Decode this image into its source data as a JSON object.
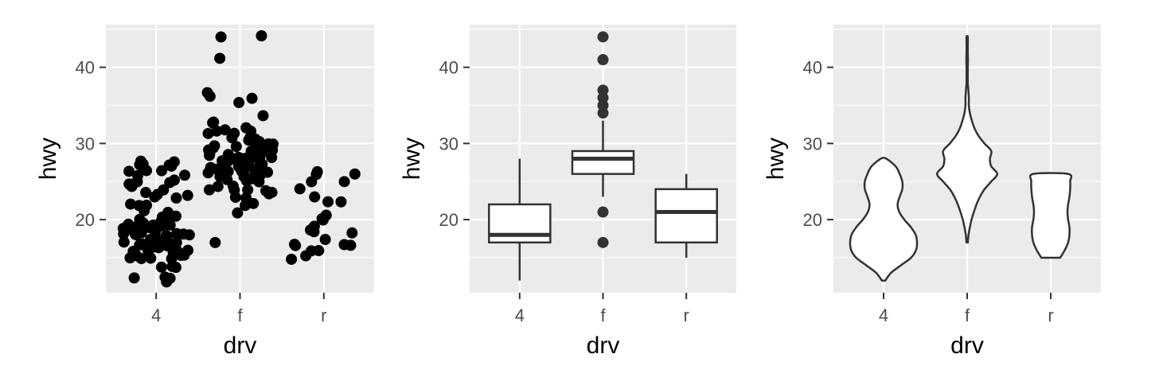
{
  "chart_data": [
    {
      "type": "scatter",
      "xlabel": "drv",
      "ylabel": "hwy",
      "categories": [
        "4",
        "f",
        "r"
      ],
      "yticks": [
        20,
        30,
        40
      ],
      "ylim": [
        10.4,
        45.6
      ],
      "grid": true,
      "point_color": "#000000",
      "points": [
        {
          "c": "4",
          "y": 12
        },
        {
          "c": "4",
          "y": 12
        },
        {
          "c": "4",
          "y": 12
        },
        {
          "c": "4",
          "y": 12
        },
        {
          "c": "4",
          "y": 12
        },
        {
          "c": "4",
          "y": 14
        },
        {
          "c": "4",
          "y": 14
        },
        {
          "c": "4",
          "y": 14
        },
        {
          "c": "4",
          "y": 15
        },
        {
          "c": "4",
          "y": 15
        },
        {
          "c": "4",
          "y": 15
        },
        {
          "c": "4",
          "y": 15
        },
        {
          "c": "4",
          "y": 15
        },
        {
          "c": "4",
          "y": 15
        },
        {
          "c": "4",
          "y": 15
        },
        {
          "c": "4",
          "y": 16
        },
        {
          "c": "4",
          "y": 16
        },
        {
          "c": "4",
          "y": 16
        },
        {
          "c": "4",
          "y": 16
        },
        {
          "c": "4",
          "y": 16
        },
        {
          "c": "4",
          "y": 16
        },
        {
          "c": "4",
          "y": 16
        },
        {
          "c": "4",
          "y": 16
        },
        {
          "c": "4",
          "y": 17
        },
        {
          "c": "4",
          "y": 17
        },
        {
          "c": "4",
          "y": 17
        },
        {
          "c": "4",
          "y": 17
        },
        {
          "c": "4",
          "y": 17
        },
        {
          "c": "4",
          "y": 17
        },
        {
          "c": "4",
          "y": 17
        },
        {
          "c": "4",
          "y": 17
        },
        {
          "c": "4",
          "y": 17
        },
        {
          "c": "4",
          "y": 17
        },
        {
          "c": "4",
          "y": 17
        },
        {
          "c": "4",
          "y": 17
        },
        {
          "c": "4",
          "y": 17
        },
        {
          "c": "4",
          "y": 17
        },
        {
          "c": "4",
          "y": 17
        },
        {
          "c": "4",
          "y": 17
        },
        {
          "c": "4",
          "y": 18
        },
        {
          "c": "4",
          "y": 18
        },
        {
          "c": "4",
          "y": 18
        },
        {
          "c": "4",
          "y": 18
        },
        {
          "c": "4",
          "y": 18
        },
        {
          "c": "4",
          "y": 18
        },
        {
          "c": "4",
          "y": 18
        },
        {
          "c": "4",
          "y": 18
        },
        {
          "c": "4",
          "y": 18
        },
        {
          "c": "4",
          "y": 18
        },
        {
          "c": "4",
          "y": 19
        },
        {
          "c": "4",
          "y": 19
        },
        {
          "c": "4",
          "y": 19
        },
        {
          "c": "4",
          "y": 19
        },
        {
          "c": "4",
          "y": 19
        },
        {
          "c": "4",
          "y": 19
        },
        {
          "c": "4",
          "y": 19
        },
        {
          "c": "4",
          "y": 19
        },
        {
          "c": "4",
          "y": 19
        },
        {
          "c": "4",
          "y": 19
        },
        {
          "c": "4",
          "y": 20
        },
        {
          "c": "4",
          "y": 20
        },
        {
          "c": "4",
          "y": 20
        },
        {
          "c": "4",
          "y": 20
        },
        {
          "c": "4",
          "y": 20
        },
        {
          "c": "4",
          "y": 20
        },
        {
          "c": "4",
          "y": 20
        },
        {
          "c": "4",
          "y": 20
        },
        {
          "c": "4",
          "y": 20
        },
        {
          "c": "4",
          "y": 21
        },
        {
          "c": "4",
          "y": 21
        },
        {
          "c": "4",
          "y": 22
        },
        {
          "c": "4",
          "y": 22
        },
        {
          "c": "4",
          "y": 22
        },
        {
          "c": "4",
          "y": 23
        },
        {
          "c": "4",
          "y": 23
        },
        {
          "c": "4",
          "y": 23
        },
        {
          "c": "4",
          "y": 23
        },
        {
          "c": "4",
          "y": 24
        },
        {
          "c": "4",
          "y": 24
        },
        {
          "c": "4",
          "y": 24
        },
        {
          "c": "4",
          "y": 25
        },
        {
          "c": "4",
          "y": 25
        },
        {
          "c": "4",
          "y": 25
        },
        {
          "c": "4",
          "y": 25
        },
        {
          "c": "4",
          "y": 25
        },
        {
          "c": "4",
          "y": 26
        },
        {
          "c": "4",
          "y": 26
        },
        {
          "c": "4",
          "y": 26
        },
        {
          "c": "4",
          "y": 26
        },
        {
          "c": "4",
          "y": 26
        },
        {
          "c": "4",
          "y": 27
        },
        {
          "c": "4",
          "y": 27
        },
        {
          "c": "4",
          "y": 27
        },
        {
          "c": "4",
          "y": 27
        },
        {
          "c": "4",
          "y": 27
        },
        {
          "c": "4",
          "y": 28
        },
        {
          "c": "4",
          "y": 28
        },
        {
          "c": "f",
          "y": 17
        },
        {
          "c": "f",
          "y": 21
        },
        {
          "c": "f",
          "y": 22
        },
        {
          "c": "f",
          "y": 22
        },
        {
          "c": "f",
          "y": 23
        },
        {
          "c": "f",
          "y": 23
        },
        {
          "c": "f",
          "y": 23
        },
        {
          "c": "f",
          "y": 24
        },
        {
          "c": "f",
          "y": 24
        },
        {
          "c": "f",
          "y": 24
        },
        {
          "c": "f",
          "y": 24
        },
        {
          "c": "f",
          "y": 24
        },
        {
          "c": "f",
          "y": 24
        },
        {
          "c": "f",
          "y": 24
        },
        {
          "c": "f",
          "y": 25
        },
        {
          "c": "f",
          "y": 25
        },
        {
          "c": "f",
          "y": 25
        },
        {
          "c": "f",
          "y": 25
        },
        {
          "c": "f",
          "y": 25
        },
        {
          "c": "f",
          "y": 25
        },
        {
          "c": "f",
          "y": 26
        },
        {
          "c": "f",
          "y": 26
        },
        {
          "c": "f",
          "y": 26
        },
        {
          "c": "f",
          "y": 26
        },
        {
          "c": "f",
          "y": 26
        },
        {
          "c": "f",
          "y": 26
        },
        {
          "c": "f",
          "y": 26
        },
        {
          "c": "f",
          "y": 26
        },
        {
          "c": "f",
          "y": 26
        },
        {
          "c": "f",
          "y": 26
        },
        {
          "c": "f",
          "y": 26
        },
        {
          "c": "f",
          "y": 26
        },
        {
          "c": "f",
          "y": 27
        },
        {
          "c": "f",
          "y": 27
        },
        {
          "c": "f",
          "y": 27
        },
        {
          "c": "f",
          "y": 27
        },
        {
          "c": "f",
          "y": 27
        },
        {
          "c": "f",
          "y": 27
        },
        {
          "c": "f",
          "y": 27
        },
        {
          "c": "f",
          "y": 27
        },
        {
          "c": "f",
          "y": 27
        },
        {
          "c": "f",
          "y": 27
        },
        {
          "c": "f",
          "y": 27
        },
        {
          "c": "f",
          "y": 27
        },
        {
          "c": "f",
          "y": 28
        },
        {
          "c": "f",
          "y": 28
        },
        {
          "c": "f",
          "y": 28
        },
        {
          "c": "f",
          "y": 28
        },
        {
          "c": "f",
          "y": 28
        },
        {
          "c": "f",
          "y": 28
        },
        {
          "c": "f",
          "y": 28
        },
        {
          "c": "f",
          "y": 28
        },
        {
          "c": "f",
          "y": 28
        },
        {
          "c": "f",
          "y": 28
        },
        {
          "c": "f",
          "y": 28
        },
        {
          "c": "f",
          "y": 28
        },
        {
          "c": "f",
          "y": 28
        },
        {
          "c": "f",
          "y": 28
        },
        {
          "c": "f",
          "y": 29
        },
        {
          "c": "f",
          "y": 29
        },
        {
          "c": "f",
          "y": 29
        },
        {
          "c": "f",
          "y": 29
        },
        {
          "c": "f",
          "y": 29
        },
        {
          "c": "f",
          "y": 29
        },
        {
          "c": "f",
          "y": 29
        },
        {
          "c": "f",
          "y": 29
        },
        {
          "c": "f",
          "y": 29
        },
        {
          "c": "f",
          "y": 29
        },
        {
          "c": "f",
          "y": 29
        },
        {
          "c": "f",
          "y": 29
        },
        {
          "c": "f",
          "y": 29
        },
        {
          "c": "f",
          "y": 30
        },
        {
          "c": "f",
          "y": 30
        },
        {
          "c": "f",
          "y": 30
        },
        {
          "c": "f",
          "y": 30
        },
        {
          "c": "f",
          "y": 30
        },
        {
          "c": "f",
          "y": 30
        },
        {
          "c": "f",
          "y": 31
        },
        {
          "c": "f",
          "y": 31
        },
        {
          "c": "f",
          "y": 31
        },
        {
          "c": "f",
          "y": 31
        },
        {
          "c": "f",
          "y": 31
        },
        {
          "c": "f",
          "y": 32
        },
        {
          "c": "f",
          "y": 32
        },
        {
          "c": "f",
          "y": 32
        },
        {
          "c": "f",
          "y": 32
        },
        {
          "c": "f",
          "y": 33
        },
        {
          "c": "f",
          "y": 33
        },
        {
          "c": "f",
          "y": 34
        },
        {
          "c": "f",
          "y": 35
        },
        {
          "c": "f",
          "y": 36
        },
        {
          "c": "f",
          "y": 36
        },
        {
          "c": "f",
          "y": 37
        },
        {
          "c": "f",
          "y": 41
        },
        {
          "c": "f",
          "y": 44
        },
        {
          "c": "f",
          "y": 44
        },
        {
          "c": "r",
          "y": 15
        },
        {
          "c": "r",
          "y": 15
        },
        {
          "c": "r",
          "y": 16
        },
        {
          "c": "r",
          "y": 16
        },
        {
          "c": "r",
          "y": 17
        },
        {
          "c": "r",
          "y": 17
        },
        {
          "c": "r",
          "y": 17
        },
        {
          "c": "r",
          "y": 17
        },
        {
          "c": "r",
          "y": 17
        },
        {
          "c": "r",
          "y": 18
        },
        {
          "c": "r",
          "y": 18
        },
        {
          "c": "r",
          "y": 19
        },
        {
          "c": "r",
          "y": 19
        },
        {
          "c": "r",
          "y": 20
        },
        {
          "c": "r",
          "y": 20
        },
        {
          "c": "r",
          "y": 21
        },
        {
          "c": "r",
          "y": 22
        },
        {
          "c": "r",
          "y": 22
        },
        {
          "c": "r",
          "y": 23
        },
        {
          "c": "r",
          "y": 24
        },
        {
          "c": "r",
          "y": 25
        },
        {
          "c": "r",
          "y": 25
        },
        {
          "c": "r",
          "y": 26
        },
        {
          "c": "r",
          "y": 26
        },
        {
          "c": "r",
          "y": 26
        }
      ]
    },
    {
      "type": "box",
      "xlabel": "drv",
      "ylabel": "hwy",
      "categories": [
        "4",
        "f",
        "r"
      ],
      "yticks": [
        20,
        30,
        40
      ],
      "ylim": [
        10.4,
        45.6
      ],
      "grid": true,
      "boxes": [
        {
          "c": "4",
          "lower_whisker": 12,
          "q1": 17,
          "median": 18,
          "q3": 22,
          "upper_whisker": 28,
          "outliers": []
        },
        {
          "c": "f",
          "lower_whisker": 23,
          "q1": 26,
          "median": 28,
          "q3": 29,
          "upper_whisker": 33,
          "outliers": [
            17,
            21,
            34,
            35,
            36,
            37,
            41,
            44
          ]
        },
        {
          "c": "r",
          "lower_whisker": 15,
          "q1": 17,
          "median": 21,
          "q3": 24,
          "upper_whisker": 26,
          "outliers": []
        }
      ]
    },
    {
      "type": "violin",
      "xlabel": "drv",
      "ylabel": "hwy",
      "categories": [
        "4",
        "f",
        "r"
      ],
      "yticks": [
        20,
        30,
        40
      ],
      "ylim": [
        10.4,
        45.6
      ],
      "grid": true,
      "violins": [
        {
          "c": "4",
          "profile": [
            [
              12,
              0.05
            ],
            [
              13,
              0.22
            ],
            [
              14,
              0.52
            ],
            [
              15,
              0.82
            ],
            [
              16,
              0.97
            ],
            [
              17,
              1.0
            ],
            [
              18,
              0.96
            ],
            [
              19,
              0.82
            ],
            [
              20,
              0.62
            ],
            [
              21,
              0.47
            ],
            [
              22,
              0.42
            ],
            [
              23,
              0.48
            ],
            [
              24,
              0.56
            ],
            [
              25,
              0.56
            ],
            [
              26,
              0.48
            ],
            [
              27,
              0.36
            ],
            [
              28,
              0.08
            ]
          ]
        },
        {
          "c": "f",
          "profile": [
            [
              17,
              0.02
            ],
            [
              18,
              0.04
            ],
            [
              19,
              0.08
            ],
            [
              20,
              0.13
            ],
            [
              21,
              0.2
            ],
            [
              22,
              0.28
            ],
            [
              23,
              0.38
            ],
            [
              24,
              0.52
            ],
            [
              25,
              0.72
            ],
            [
              26,
              0.9
            ],
            [
              27,
              0.72
            ],
            [
              28,
              0.68
            ],
            [
              29,
              0.72
            ],
            [
              30,
              0.52
            ],
            [
              31,
              0.34
            ],
            [
              32,
              0.22
            ],
            [
              33,
              0.14
            ],
            [
              34,
              0.08
            ],
            [
              35,
              0.05
            ],
            [
              36,
              0.05
            ],
            [
              37,
              0.035
            ],
            [
              38,
              0.02
            ],
            [
              39,
              0.02
            ],
            [
              40,
              0.02
            ],
            [
              41,
              0.025
            ],
            [
              42,
              0.02
            ],
            [
              43,
              0.02
            ],
            [
              44,
              0.02
            ]
          ]
        },
        {
          "c": "r",
          "profile": [
            [
              15,
              0.28
            ],
            [
              16,
              0.42
            ],
            [
              17,
              0.52
            ],
            [
              18,
              0.56
            ],
            [
              19,
              0.56
            ],
            [
              20,
              0.52
            ],
            [
              21,
              0.5
            ],
            [
              22,
              0.52
            ],
            [
              23,
              0.56
            ],
            [
              24,
              0.58
            ],
            [
              25,
              0.58
            ],
            [
              26,
              0.52
            ]
          ]
        }
      ]
    }
  ]
}
